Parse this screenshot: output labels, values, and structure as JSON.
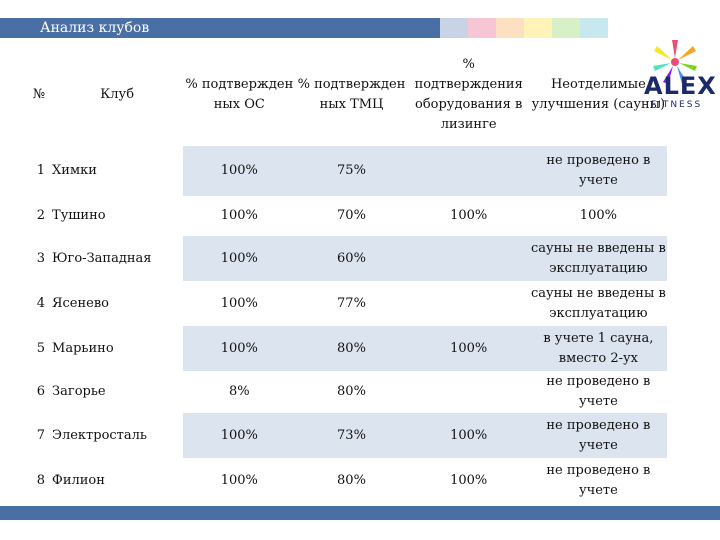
{
  "header": {
    "title": "Анализ клубов"
  },
  "logo": {
    "name": "ALEX",
    "sub": "FITNESS"
  },
  "table": {
    "headers": {
      "num": "№",
      "club": "Клуб",
      "os": "% подтвержден ных ОС",
      "tmc": "% подтвержден ных ТМЦ",
      "lease": "% подтверждения оборудования в лизинге",
      "sauna": "Неотделимые улучшения (сауны)"
    },
    "rows": [
      {
        "num": "1",
        "club": "Химки",
        "os": "100%",
        "tmc": "75%",
        "lease": "",
        "sauna": "не проведено в учете"
      },
      {
        "num": "2",
        "club": "Тушино",
        "os": "100%",
        "tmc": "70%",
        "lease": "100%",
        "sauna": "100%"
      },
      {
        "num": "3",
        "club": "Юго-Западная",
        "os": "100%",
        "tmc": "60%",
        "lease": "",
        "sauna": "сауны не введены в эксплуатацию"
      },
      {
        "num": "4",
        "club": "Ясенево",
        "os": "100%",
        "tmc": "77%",
        "lease": "",
        "sauna": "сауны не введены в эксплуатацию"
      },
      {
        "num": "5",
        "club": "Марьино",
        "os": "100%",
        "tmc": "80%",
        "lease": "100%",
        "sauna": "в учете 1 сауна, вместо 2-ух"
      },
      {
        "num": "6",
        "club": "Загорье",
        "os": "8%",
        "tmc": "80%",
        "lease": "",
        "sauna": "не проведено в учете"
      },
      {
        "num": "7",
        "club": "Электросталь",
        "os": "100%",
        "tmc": "73%",
        "lease": "100%",
        "sauna": "не проведено в учете"
      },
      {
        "num": "8",
        "club": "Филион",
        "os": "100%",
        "tmc": "80%",
        "lease": "100%",
        "sauna": "не проведено в учете"
      }
    ]
  },
  "colors": {
    "header_bar": "#4a6fa5",
    "row_shade": "#dce4ef",
    "swatches": [
      "#c8d3e6",
      "#f7c6d4",
      "#fde0c2",
      "#fff3b8",
      "#d7f0c8",
      "#c8e8f0",
      "#d0d0e8"
    ]
  }
}
